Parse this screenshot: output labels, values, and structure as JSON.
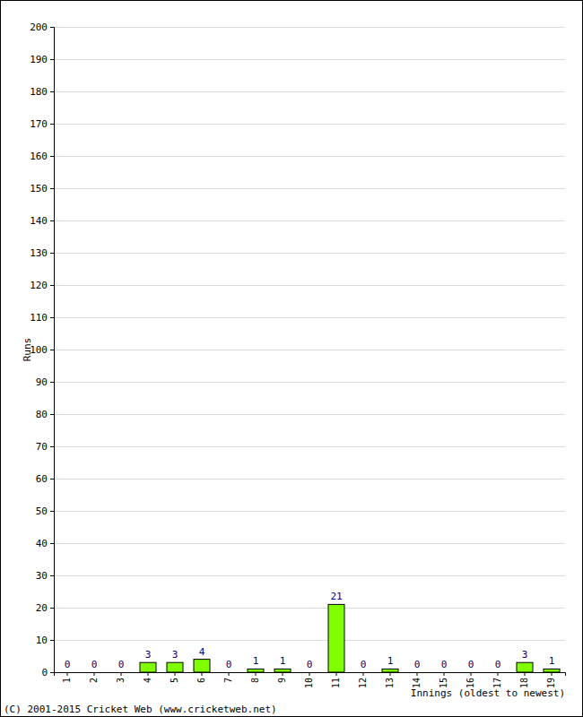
{
  "chart_data": {
    "type": "bar",
    "x_label": "Innings (oldest to newest)",
    "y_label": "Runs",
    "annotations": [
      "(C) 2001-2015 Cricket Web (www.cricketweb.net)"
    ],
    "categories": [
      "1",
      "2",
      "3",
      "4",
      "5",
      "6",
      "7",
      "8",
      "9",
      "10",
      "11",
      "12",
      "13",
      "14",
      "15",
      "16",
      "17",
      "18",
      "19"
    ],
    "values": [
      0,
      0,
      0,
      3,
      3,
      4,
      0,
      1,
      1,
      0,
      21,
      0,
      1,
      0,
      0,
      0,
      0,
      3,
      1
    ],
    "color": "#80ff00",
    "ylim": [
      0,
      200
    ],
    "yticks": [
      0,
      10,
      20,
      30,
      40,
      50,
      60,
      70,
      80,
      90,
      100,
      110,
      120,
      130,
      140,
      150,
      160,
      170,
      180,
      190,
      200
    ],
    "grid": true,
    "data_labels": true
  }
}
